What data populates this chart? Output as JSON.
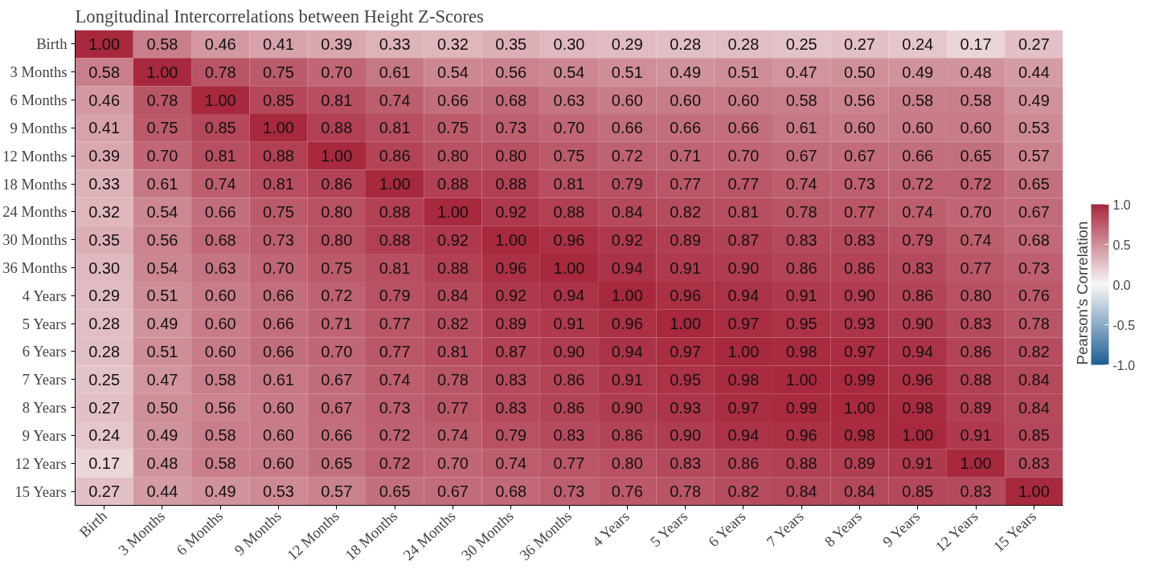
{
  "chart_data": {
    "type": "heatmap",
    "title": "Longitudinal Intercorrelations between Height Z-Scores",
    "clabel": "Pearson's Correlation",
    "categories": [
      "Birth",
      "3 Months",
      "6 Months",
      "9 Months",
      "12 Months",
      "18 Months",
      "24 Months",
      "30 Months",
      "36 Months",
      "4 Years",
      "5 Years",
      "6 Years",
      "7 Years",
      "8 Years",
      "9 Years",
      "12 Years",
      "15 Years"
    ],
    "y_categories": [
      "Birth",
      "3 Months",
      "6 Months",
      "9 Months",
      "12 Months",
      "18 Months",
      "24 Months",
      "30 Months",
      "36 Months",
      "4 Years",
      "5 Years",
      "6 Years",
      "7 Years",
      "8 Years",
      "9 Years",
      "12 Years",
      "15 Years"
    ],
    "cells": [
      [
        1.0,
        0.58,
        0.46,
        0.41,
        0.39,
        0.33,
        0.32,
        0.35,
        0.3,
        0.29,
        0.28,
        0.28,
        0.25,
        0.27,
        0.24,
        0.17,
        0.27
      ],
      [
        0.58,
        1.0,
        0.78,
        0.75,
        0.7,
        0.61,
        0.54,
        0.56,
        0.54,
        0.51,
        0.49,
        0.51,
        0.47,
        0.5,
        0.49,
        0.48,
        0.44
      ],
      [
        0.46,
        0.78,
        1.0,
        0.85,
        0.81,
        0.74,
        0.66,
        0.68,
        0.63,
        0.6,
        0.6,
        0.6,
        0.58,
        0.56,
        0.58,
        0.58,
        0.49
      ],
      [
        0.41,
        0.75,
        0.85,
        1.0,
        0.88,
        0.81,
        0.75,
        0.73,
        0.7,
        0.66,
        0.66,
        0.66,
        0.61,
        0.6,
        0.6,
        0.6,
        0.53
      ],
      [
        0.39,
        0.7,
        0.81,
        0.88,
        1.0,
        0.86,
        0.8,
        0.8,
        0.75,
        0.72,
        0.71,
        0.7,
        0.67,
        0.67,
        0.66,
        0.65,
        0.57
      ],
      [
        0.33,
        0.61,
        0.74,
        0.81,
        0.86,
        1.0,
        0.88,
        0.88,
        0.81,
        0.79,
        0.77,
        0.77,
        0.74,
        0.73,
        0.72,
        0.72,
        0.65
      ],
      [
        0.32,
        0.54,
        0.66,
        0.75,
        0.8,
        0.88,
        1.0,
        0.92,
        0.88,
        0.84,
        0.82,
        0.81,
        0.78,
        0.77,
        0.74,
        0.7,
        0.67
      ],
      [
        0.35,
        0.56,
        0.68,
        0.73,
        0.8,
        0.88,
        0.92,
        1.0,
        0.96,
        0.92,
        0.89,
        0.87,
        0.83,
        0.83,
        0.79,
        0.74,
        0.68
      ],
      [
        0.3,
        0.54,
        0.63,
        0.7,
        0.75,
        0.81,
        0.88,
        0.96,
        1.0,
        0.94,
        0.91,
        0.9,
        0.86,
        0.86,
        0.83,
        0.77,
        0.73
      ],
      [
        0.29,
        0.51,
        0.6,
        0.66,
        0.72,
        0.79,
        0.84,
        0.92,
        0.94,
        1.0,
        0.96,
        0.94,
        0.91,
        0.9,
        0.86,
        0.8,
        0.76
      ],
      [
        0.28,
        0.49,
        0.6,
        0.66,
        0.71,
        0.77,
        0.82,
        0.89,
        0.91,
        0.96,
        1.0,
        0.97,
        0.95,
        0.93,
        0.9,
        0.83,
        0.78
      ],
      [
        0.28,
        0.51,
        0.6,
        0.66,
        0.7,
        0.77,
        0.81,
        0.87,
        0.9,
        0.94,
        0.97,
        1.0,
        0.98,
        0.97,
        0.94,
        0.86,
        0.82
      ],
      [
        0.25,
        0.47,
        0.58,
        0.61,
        0.67,
        0.74,
        0.78,
        0.83,
        0.86,
        0.91,
        0.95,
        0.98,
        1.0,
        0.99,
        0.96,
        0.88,
        0.84
      ],
      [
        0.27,
        0.5,
        0.56,
        0.6,
        0.67,
        0.73,
        0.77,
        0.83,
        0.86,
        0.9,
        0.93,
        0.97,
        0.99,
        1.0,
        0.98,
        0.89,
        0.84
      ],
      [
        0.24,
        0.49,
        0.58,
        0.6,
        0.66,
        0.72,
        0.74,
        0.79,
        0.83,
        0.86,
        0.9,
        0.94,
        0.96,
        0.98,
        1.0,
        0.91,
        0.85
      ],
      [
        0.17,
        0.48,
        0.58,
        0.6,
        0.65,
        0.72,
        0.7,
        0.74,
        0.77,
        0.8,
        0.83,
        0.86,
        0.88,
        0.89,
        0.91,
        1.0,
        0.83
      ],
      [
        0.27,
        0.44,
        0.49,
        0.53,
        0.57,
        0.65,
        0.67,
        0.68,
        0.73,
        0.76,
        0.78,
        0.82,
        0.84,
        0.84,
        0.85,
        0.83,
        1.0
      ]
    ],
    "cell_labels": [
      [
        "1.00",
        "0.58",
        "0.46",
        "0.41",
        "0.39",
        "0.33",
        "0.32",
        "0.35",
        "0.30",
        "0.29",
        "0.28",
        "0.28",
        "0.25",
        "0.27",
        "0.24",
        "0.17",
        "0.27"
      ],
      [
        "0.58",
        "1.00",
        "0.78",
        "0.75",
        "0.70",
        "0.61",
        "0.54",
        "0.56",
        "0.54",
        "0.51",
        "0.49",
        "0.51",
        "0.47",
        "0.50",
        "0.49",
        "0.48",
        "0.44"
      ],
      [
        "0.46",
        "0.78",
        "1.00",
        "0.85",
        "0.81",
        "0.74",
        "0.66",
        "0.68",
        "0.63",
        "0.60",
        "0.60",
        "0.60",
        "0.58",
        "0.56",
        "0.58",
        "0.58",
        "0.49"
      ],
      [
        "0.41",
        "0.75",
        "0.85",
        "1.00",
        "0.88",
        "0.81",
        "0.75",
        "0.73",
        "0.70",
        "0.66",
        "0.66",
        "0.66",
        "0.61",
        "0.60",
        "0.60",
        "0.60",
        "0.53"
      ],
      [
        "0.39",
        "0.70",
        "0.81",
        "0.88",
        "1.00",
        "0.86",
        "0.80",
        "0.80",
        "0.75",
        "0.72",
        "0.71",
        "0.70",
        "0.67",
        "0.67",
        "0.66",
        "0.65",
        "0.57"
      ],
      [
        "0.33",
        "0.61",
        "0.74",
        "0.81",
        "0.86",
        "1.00",
        "0.88",
        "0.88",
        "0.81",
        "0.79",
        "0.77",
        "0.77",
        "0.74",
        "0.73",
        "0.72",
        "0.72",
        "0.65"
      ],
      [
        "0.32",
        "0.54",
        "0.66",
        "0.75",
        "0.80",
        "0.88",
        "1.00",
        "0.92",
        "0.88",
        "0.84",
        "0.82",
        "0.81",
        "0.78",
        "0.77",
        "0.74",
        "0.70",
        "0.67"
      ],
      [
        "0.35",
        "0.56",
        "0.68",
        "0.73",
        "0.80",
        "0.88",
        "0.92",
        "1.00",
        "0.96",
        "0.92",
        "0.89",
        "0.87",
        "0.83",
        "0.83",
        "0.79",
        "0.74",
        "0.68"
      ],
      [
        "0.30",
        "0.54",
        "0.63",
        "0.70",
        "0.75",
        "0.81",
        "0.88",
        "0.96",
        "1.00",
        "0.94",
        "0.91",
        "0.90",
        "0.86",
        "0.86",
        "0.83",
        "0.77",
        "0.73"
      ],
      [
        "0.29",
        "0.51",
        "0.60",
        "0.66",
        "0.72",
        "0.79",
        "0.84",
        "0.92",
        "0.94",
        "1.00",
        "0.96",
        "0.94",
        "0.91",
        "0.90",
        "0.86",
        "0.80",
        "0.76"
      ],
      [
        "0.28",
        "0.49",
        "0.60",
        "0.66",
        "0.71",
        "0.77",
        "0.82",
        "0.89",
        "0.91",
        "0.96",
        "1.00",
        "0.97",
        "0.95",
        "0.93",
        "0.90",
        "0.83",
        "0.78"
      ],
      [
        "0.28",
        "0.51",
        "0.60",
        "0.66",
        "0.70",
        "0.77",
        "0.81",
        "0.87",
        "0.90",
        "0.94",
        "0.97",
        "1.00",
        "0.98",
        "0.97",
        "0.94",
        "0.86",
        "0.82"
      ],
      [
        "0.25",
        "0.47",
        "0.58",
        "0.61",
        "0.67",
        "0.74",
        "0.78",
        "0.83",
        "0.86",
        "0.91",
        "0.95",
        "0.98",
        "1.00",
        "0.99",
        "0.96",
        "0.88",
        "0.84"
      ],
      [
        "0.27",
        "0.50",
        "0.56",
        "0.60",
        "0.67",
        "0.73",
        "0.77",
        "0.83",
        "0.86",
        "0.90",
        "0.93",
        "0.97",
        "0.99",
        "1.00",
        "0.98",
        "0.89",
        "0.84"
      ],
      [
        "0.24",
        "0.49",
        "0.58",
        "0.60",
        "0.66",
        "0.72",
        "0.74",
        "0.79",
        "0.83",
        "0.86",
        "0.90",
        "0.94",
        "0.96",
        "0.98",
        "1.00",
        "0.91",
        "0.85"
      ],
      [
        "0.17",
        "0.48",
        "0.58",
        "0.60",
        "0.65",
        "0.72",
        "0.70",
        "0.74",
        "0.77",
        "0.80",
        "0.83",
        "0.86",
        "0.88",
        "0.89",
        "0.91",
        "1.00",
        "0.83"
      ],
      [
        "0.27",
        "0.44",
        "0.49",
        "0.53",
        "0.57",
        "0.65",
        "0.67",
        "0.68",
        "0.73",
        "0.76",
        "0.78",
        "0.82",
        "0.84",
        "0.84",
        "0.85",
        "0.83",
        "1.00"
      ]
    ],
    "colors": [
      "#1f5f94",
      "#f7f7f7",
      "#a8283d"
    ],
    "clim": [
      -1,
      1
    ],
    "cticks": [
      {
        "value": -1,
        "label": "-1.0"
      },
      {
        "value": -0.5,
        "label": "-0.5"
      },
      {
        "value": 0,
        "label": "0.0"
      },
      {
        "value": 0.5,
        "label": "0.5"
      },
      {
        "value": 1,
        "label": "1.0"
      }
    ]
  }
}
